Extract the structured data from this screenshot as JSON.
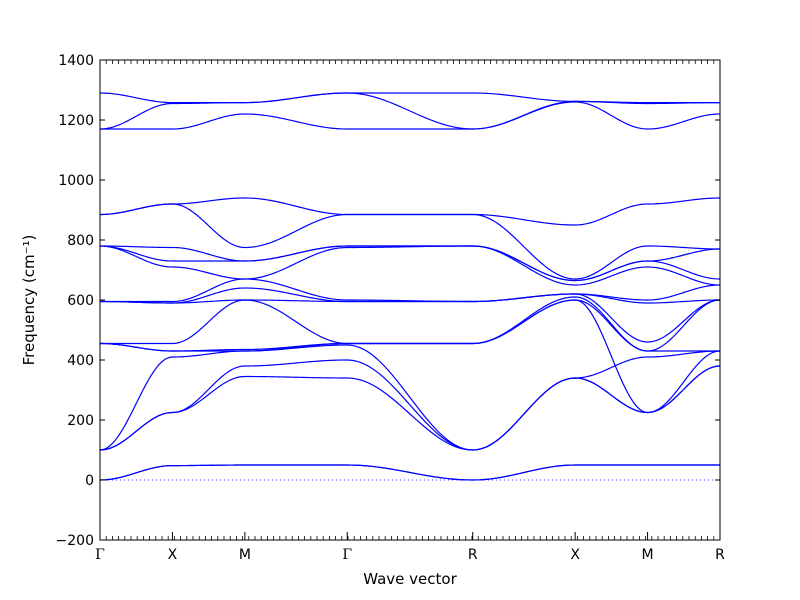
{
  "chart_data": {
    "type": "line",
    "xlabel": "Wave vector",
    "ylabel": "Frequency (cm⁻¹)",
    "ylim": [
      -200,
      1400
    ],
    "yticks": [
      -200,
      0,
      200,
      400,
      600,
      800,
      1000,
      1200,
      1400
    ],
    "zero_line": 0,
    "grid": false,
    "line_color": "#0000ff",
    "kpoints": [
      {
        "label": "Γ",
        "x": 0
      },
      {
        "label": "X",
        "x": 1
      },
      {
        "label": "M",
        "x": 2
      },
      {
        "label": "Γ",
        "x": 3.414
      },
      {
        "label": "R",
        "x": 5.146
      },
      {
        "label": "X",
        "x": 6.56
      },
      {
        "label": "M",
        "x": 7.56
      },
      {
        "label": "R",
        "x": 8.56
      }
    ],
    "bands": [
      [
        0,
        48,
        50,
        50,
        0,
        50,
        50,
        50,
        50
      ],
      [
        0,
        48,
        50,
        50,
        0,
        50,
        50,
        50,
        50
      ],
      [
        100,
        225,
        345,
        340,
        100,
        340,
        225,
        380,
        340
      ],
      [
        100,
        225,
        380,
        400,
        100,
        340,
        225,
        380,
        340
      ],
      [
        100,
        410,
        430,
        450,
        100,
        340,
        410,
        430,
        340
      ],
      [
        455,
        430,
        430,
        455,
        455,
        600,
        225,
        430,
        600
      ],
      [
        455,
        430,
        435,
        455,
        455,
        600,
        430,
        430,
        600
      ],
      [
        455,
        455,
        600,
        455,
        455,
        610,
        430,
        600,
        610
      ],
      [
        595,
        590,
        600,
        595,
        595,
        620,
        460,
        600,
        610
      ],
      [
        595,
        590,
        640,
        595,
        595,
        620,
        590,
        600,
        620
      ],
      [
        595,
        595,
        670,
        600,
        595,
        620,
        600,
        650,
        640
      ],
      [
        780,
        710,
        670,
        775,
        780,
        650,
        710,
        650,
        670
      ],
      [
        780,
        730,
        730,
        780,
        780,
        665,
        730,
        670,
        670
      ],
      [
        780,
        775,
        730,
        780,
        780,
        665,
        730,
        770,
        670
      ],
      [
        885,
        920,
        775,
        885,
        885,
        670,
        780,
        770,
        670
      ],
      [
        885,
        920,
        940,
        885,
        885,
        850,
        920,
        940,
        850
      ],
      [
        1170,
        1170,
        1220,
        1170,
        1170,
        1260,
        1170,
        1220,
        1262
      ],
      [
        1170,
        1255,
        1258,
        1290,
        1170,
        1262,
        1255,
        1258,
        1262
      ],
      [
        1290,
        1258,
        1258,
        1290,
        1290,
        1262,
        1258,
        1258,
        1262
      ]
    ]
  }
}
